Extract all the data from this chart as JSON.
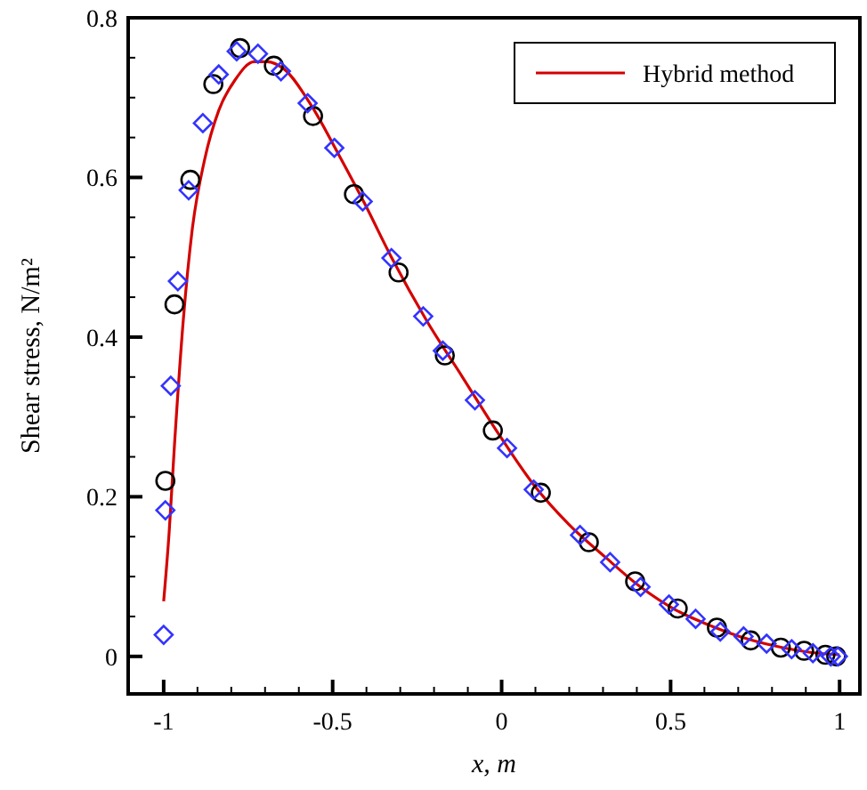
{
  "chart_data": {
    "type": "line",
    "xlabel": "x, m",
    "ylabel": "Shear stress, N/m²",
    "xlim": [
      -1.105,
      1.06
    ],
    "ylim": [
      -0.047,
      0.8
    ],
    "xticks": [
      -1,
      {
        "value": -0.9,
        "label": null
      },
      {
        "value": -0.8,
        "label": null
      },
      {
        "value": -0.7,
        "label": null
      },
      {
        "value": -0.6,
        "label": null
      },
      -0.5,
      {
        "value": -0.4,
        "label": null
      },
      {
        "value": -0.3,
        "label": null
      },
      {
        "value": -0.2,
        "label": null
      },
      {
        "value": -0.1,
        "label": null
      },
      0,
      {
        "value": 0.1,
        "label": null
      },
      {
        "value": 0.2,
        "label": null
      },
      {
        "value": 0.3,
        "label": null
      },
      {
        "value": 0.4,
        "label": null
      },
      0.5,
      {
        "value": 0.6,
        "label": null
      },
      {
        "value": 0.7,
        "label": null
      },
      {
        "value": 0.8,
        "label": null
      },
      {
        "value": 0.9,
        "label": null
      },
      1
    ],
    "yticks": [
      0,
      {
        "value": 0.05,
        "label": null
      },
      {
        "value": 0.1,
        "label": null
      },
      {
        "value": 0.15,
        "label": null
      },
      0.2,
      {
        "value": 0.25,
        "label": null
      },
      {
        "value": 0.3,
        "label": null
      },
      {
        "value": 0.35,
        "label": null
      },
      0.4,
      {
        "value": 0.45,
        "label": null
      },
      {
        "value": 0.5,
        "label": null
      },
      {
        "value": 0.55,
        "label": null
      },
      0.6,
      {
        "value": 0.65,
        "label": null
      },
      {
        "value": 0.7,
        "label": null
      },
      {
        "value": 0.75,
        "label": null
      },
      0.8
    ],
    "grid": false,
    "legend": "top right",
    "series": [
      {
        "name": "Hybrid method",
        "color": "#d40000",
        "marker": "none",
        "line_style": "solid",
        "x": [
          -1,
          -0.984,
          -0.968,
          -0.942,
          -0.916,
          -0.879,
          -0.837,
          -0.789,
          -0.732,
          -0.695,
          -0.642,
          -0.563,
          -0.484,
          -0.405,
          -0.326,
          -0.221,
          -0.116,
          -0.011,
          0.095,
          0.2,
          0.305,
          0.411,
          0.516,
          0.621,
          0.726,
          0.832,
          0.937,
          1
        ],
        "values": [
          0.069,
          0.154,
          0.265,
          0.421,
          0.533,
          0.622,
          0.684,
          0.722,
          0.745,
          0.745,
          0.735,
          0.69,
          0.63,
          0.567,
          0.5,
          0.42,
          0.35,
          0.28,
          0.215,
          0.165,
          0.125,
          0.087,
          0.058,
          0.038,
          0.022,
          0.011,
          0.004,
          0.002
        ]
      },
      {
        "type": "scatter",
        "color": "#000000",
        "marker": "circle",
        "x": [
          -0.995,
          -0.968,
          -0.921,
          -0.853,
          -0.774,
          -0.674,
          -0.558,
          -0.437,
          -0.305,
          -0.168,
          -0.026,
          0.116,
          0.258,
          0.395,
          0.521,
          0.637,
          0.737,
          0.826,
          0.895,
          0.958,
          0.99
        ],
        "values": [
          0.22,
          0.441,
          0.597,
          0.717,
          0.762,
          0.74,
          0.677,
          0.579,
          0.481,
          0.377,
          0.283,
          0.205,
          0.143,
          0.094,
          0.06,
          0.036,
          0.02,
          0.011,
          0.007,
          0.002,
          0
        ]
      },
      {
        "type": "scatter",
        "color": "#3333ff",
        "marker": "diamond",
        "x": [
          -1,
          -0.995,
          -0.979,
          -0.958,
          -0.926,
          -0.884,
          -0.837,
          -0.784,
          -0.721,
          -0.653,
          -0.574,
          -0.495,
          -0.411,
          -0.326,
          -0.232,
          -0.174,
          -0.079,
          0.016,
          0.095,
          0.232,
          0.321,
          0.411,
          0.495,
          0.574,
          0.647,
          0.716,
          0.784,
          0.858,
          0.921,
          0.974,
          0.995
        ],
        "values": [
          0.027,
          0.183,
          0.339,
          0.47,
          0.584,
          0.668,
          0.729,
          0.758,
          0.755,
          0.733,
          0.693,
          0.637,
          0.57,
          0.499,
          0.426,
          0.383,
          0.321,
          0.261,
          0.209,
          0.152,
          0.118,
          0.087,
          0.065,
          0.047,
          0.031,
          0.025,
          0.016,
          0.009,
          0.004,
          0,
          0
        ]
      }
    ]
  }
}
